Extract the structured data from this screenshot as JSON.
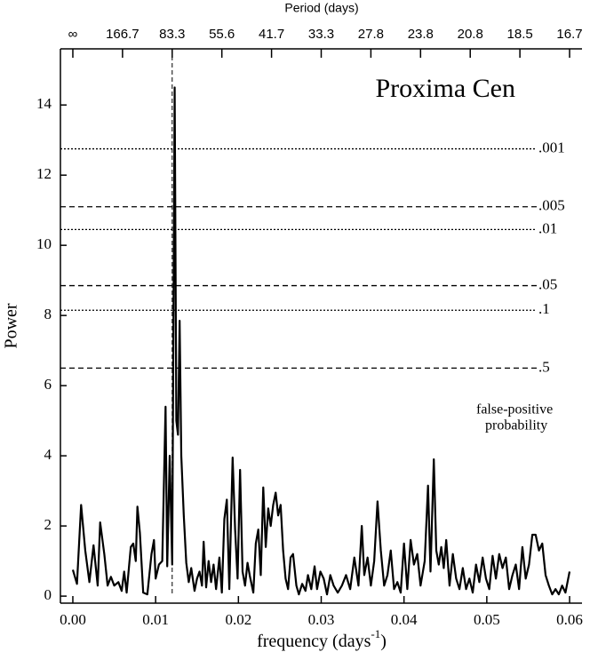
{
  "chart_data": {
    "type": "line",
    "title": "Proxima Cen",
    "ylabel": "Power",
    "xlabel": [
      "frequency (days",
      "-1",
      ")"
    ],
    "x2label": "Period (days)",
    "annotation": [
      "false-positive",
      "probability"
    ],
    "xlim": [
      -0.0015,
      0.0615
    ],
    "ylim": [
      -0.2,
      15.6
    ],
    "xticks": [
      {
        "value": 0,
        "label": "0.00"
      },
      {
        "value": 0.01,
        "label": "0.01"
      },
      {
        "value": 0.02,
        "label": "0.02"
      },
      {
        "value": 0.03,
        "label": "0.03"
      },
      {
        "value": 0.04,
        "label": "0.04"
      },
      {
        "value": 0.05,
        "label": "0.05"
      },
      {
        "value": 0.06,
        "label": "0.06"
      }
    ],
    "yticks": [
      0,
      2,
      4,
      6,
      8,
      10,
      12,
      14
    ],
    "x2ticks": [
      {
        "value": 0,
        "label": "∞"
      },
      {
        "value": 0.006,
        "label": "166.7"
      },
      {
        "value": 0.012,
        "label": "83.3"
      },
      {
        "value": 0.018,
        "label": "55.6"
      },
      {
        "value": 0.024,
        "label": "41.7"
      },
      {
        "value": 0.03,
        "label": "33.3"
      },
      {
        "value": 0.036,
        "label": "27.8"
      },
      {
        "value": 0.042,
        "label": "23.8"
      },
      {
        "value": 0.048,
        "label": "20.8"
      },
      {
        "value": 0.054,
        "label": "18.5"
      },
      {
        "value": 0.06,
        "label": "16.7"
      }
    ],
    "reference_x": 0.012,
    "thresholds": [
      {
        "label": ".001",
        "value": 12.75,
        "style": "dotted"
      },
      {
        "label": ".005",
        "value": 11.1,
        "style": "dashed"
      },
      {
        "label": ".01",
        "value": 10.45,
        "style": "dotted"
      },
      {
        "label": ".05",
        "value": 8.85,
        "style": "dashed"
      },
      {
        "label": ".1",
        "value": 8.15,
        "style": "dotted"
      },
      {
        "label": ".5",
        "value": 6.5,
        "style": "dashed"
      }
    ],
    "x": [
      0.0,
      0.0005,
      0.001,
      0.0015,
      0.002,
      0.0025,
      0.003,
      0.0033,
      0.0038,
      0.0042,
      0.0046,
      0.005,
      0.0055,
      0.0059,
      0.0062,
      0.0065,
      0.007,
      0.0073,
      0.0076,
      0.0078,
      0.0081,
      0.0085,
      0.009,
      0.0095,
      0.0098,
      0.01,
      0.0104,
      0.0108,
      0.0112,
      0.0114,
      0.0117,
      0.012,
      0.0123,
      0.0125,
      0.0127,
      0.0129,
      0.0131,
      0.0134,
      0.0137,
      0.014,
      0.0143,
      0.0147,
      0.015,
      0.0153,
      0.0156,
      0.0158,
      0.0161,
      0.0164,
      0.0167,
      0.017,
      0.0173,
      0.0177,
      0.018,
      0.0183,
      0.0186,
      0.0189,
      0.0193,
      0.0196,
      0.0199,
      0.0202,
      0.0205,
      0.0208,
      0.0211,
      0.0214,
      0.0218,
      0.0221,
      0.0224,
      0.0227,
      0.023,
      0.0233,
      0.0236,
      0.0239,
      0.0242,
      0.0245,
      0.0248,
      0.0251,
      0.0254,
      0.0257,
      0.026,
      0.0263,
      0.0266,
      0.027,
      0.0273,
      0.0277,
      0.0281,
      0.0284,
      0.0288,
      0.0292,
      0.0295,
      0.0299,
      0.0303,
      0.0307,
      0.0311,
      0.0315,
      0.032,
      0.0325,
      0.033,
      0.0335,
      0.034,
      0.0345,
      0.0349,
      0.0352,
      0.0356,
      0.036,
      0.0364,
      0.0368,
      0.0372,
      0.0376,
      0.038,
      0.0384,
      0.0388,
      0.0392,
      0.0396,
      0.04,
      0.0404,
      0.0408,
      0.0412,
      0.0416,
      0.042,
      0.0425,
      0.0429,
      0.0432,
      0.0436,
      0.0439,
      0.0442,
      0.0445,
      0.0448,
      0.0451,
      0.0455,
      0.0459,
      0.0463,
      0.0467,
      0.0471,
      0.0475,
      0.0479,
      0.0483,
      0.0487,
      0.0491,
      0.0495,
      0.0499,
      0.0503,
      0.0507,
      0.0511,
      0.0515,
      0.0519,
      0.0523,
      0.0527,
      0.0531,
      0.0535,
      0.0539,
      0.0543,
      0.0547,
      0.0551,
      0.0555,
      0.0559,
      0.0563,
      0.0567,
      0.0571,
      0.0575,
      0.0579,
      0.0583,
      0.0587,
      0.0591,
      0.0595,
      0.06
    ],
    "series": [
      {
        "color": "#000000",
        "values": [
          0.75,
          0.35,
          2.6,
          1.3,
          0.4,
          1.45,
          0.3,
          2.1,
          1.2,
          0.3,
          0.55,
          0.3,
          0.4,
          0.15,
          0.7,
          0.1,
          1.4,
          1.5,
          1.0,
          2.55,
          1.8,
          0.1,
          0.05,
          1.2,
          1.6,
          0.5,
          0.9,
          1.0,
          5.4,
          0.85,
          4.0,
          0.9,
          14.5,
          5.0,
          4.6,
          7.85,
          4.0,
          2.3,
          0.95,
          0.4,
          0.8,
          0.15,
          0.5,
          0.7,
          0.3,
          1.55,
          0.25,
          1.0,
          0.4,
          0.9,
          0.2,
          1.1,
          0.1,
          2.2,
          2.75,
          0.2,
          3.95,
          1.9,
          0.5,
          3.6,
          0.7,
          0.3,
          0.95,
          0.55,
          0.1,
          1.5,
          1.9,
          0.6,
          3.1,
          1.4,
          2.5,
          2.0,
          2.6,
          2.95,
          2.3,
          2.6,
          1.3,
          0.5,
          0.2,
          1.1,
          1.2,
          0.3,
          0.05,
          0.35,
          0.15,
          0.6,
          0.2,
          0.85,
          0.2,
          0.7,
          0.5,
          0.05,
          0.6,
          0.3,
          0.1,
          0.3,
          0.6,
          0.2,
          1.1,
          0.3,
          2.0,
          0.6,
          1.1,
          0.3,
          1.0,
          2.7,
          1.3,
          0.3,
          0.6,
          1.3,
          0.2,
          0.4,
          0.1,
          1.5,
          0.2,
          1.6,
          0.9,
          1.2,
          0.3,
          1.0,
          3.15,
          0.7,
          3.9,
          1.3,
          0.9,
          1.4,
          0.8,
          1.6,
          0.3,
          1.2,
          0.5,
          0.2,
          0.8,
          0.2,
          0.5,
          0.1,
          0.9,
          0.4,
          1.1,
          0.5,
          0.2,
          1.15,
          0.5,
          1.2,
          0.8,
          1.1,
          0.2,
          0.6,
          0.9,
          0.2,
          1.4,
          0.5,
          0.9,
          1.75,
          1.75,
          1.3,
          1.5,
          0.6,
          0.3,
          0.05,
          0.2,
          0.05,
          0.3,
          0.1,
          0.7
        ]
      }
    ]
  }
}
